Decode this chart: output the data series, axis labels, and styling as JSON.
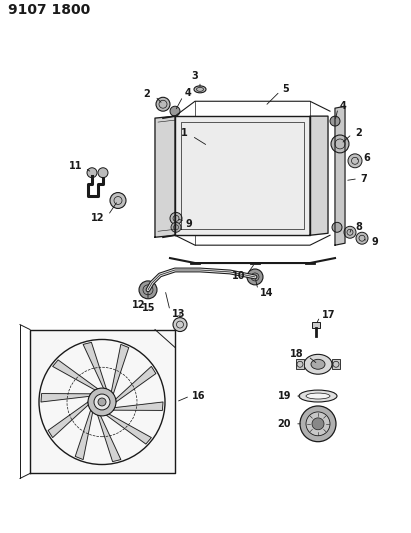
{
  "title": "9107 1800",
  "bg_color": "#ffffff",
  "line_color": "#1a1a1a",
  "title_fontsize": 10,
  "label_fontsize": 7,
  "figsize": [
    4.11,
    5.33
  ],
  "dpi": 100
}
